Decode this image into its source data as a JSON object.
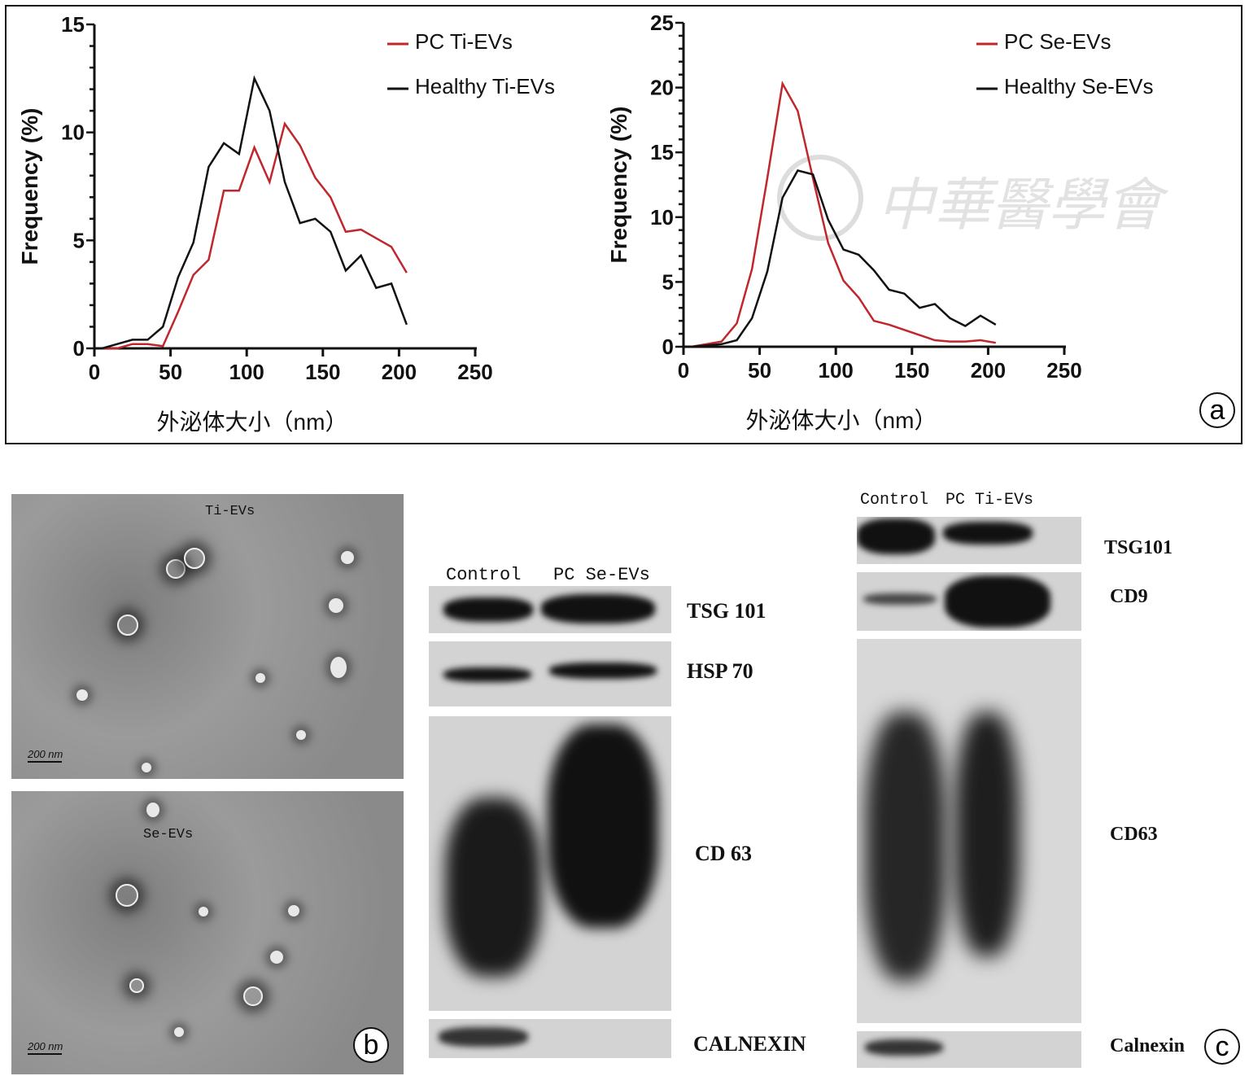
{
  "panel_labels": {
    "a": "a",
    "b": "b",
    "c": "c"
  },
  "chart_data": [
    {
      "type": "line",
      "xlabel": "外泌体大小（nm）",
      "ylabel": "Frequency (%)",
      "xlim": [
        0,
        250
      ],
      "ylim": [
        0,
        15
      ],
      "xticks": [
        "0",
        "50",
        "100",
        "150",
        "200",
        "250"
      ],
      "yticks": [
        "0",
        "5",
        "10",
        "15"
      ],
      "legend_placement": "top-right",
      "grid": false,
      "x": [
        5,
        15,
        25,
        35,
        45,
        55,
        65,
        75,
        85,
        95,
        105,
        115,
        125,
        135,
        145,
        155,
        165,
        175,
        185,
        195,
        205
      ],
      "series": [
        {
          "name": "PC Ti-EVs",
          "color": "#c0272d",
          "values": [
            0,
            0,
            0.2,
            0.2,
            0.1,
            1.7,
            3.4,
            4.1,
            7.3,
            7.3,
            9.3,
            7.7,
            10.4,
            9.4,
            7.9,
            7.0,
            5.4,
            5.5,
            5.1,
            4.7,
            3.5
          ]
        },
        {
          "name": "Healthy Ti-EVs",
          "color": "#111111",
          "values": [
            0,
            0.2,
            0.4,
            0.4,
            1.0,
            3.3,
            4.9,
            8.4,
            9.5,
            9.0,
            12.5,
            11.0,
            7.7,
            5.8,
            6.0,
            5.4,
            3.6,
            4.3,
            2.8,
            3.0,
            1.1
          ]
        }
      ]
    },
    {
      "type": "line",
      "xlabel": "外泌体大小（nm）",
      "ylabel": "Frequency (%)",
      "xlim": [
        0,
        250
      ],
      "ylim": [
        0,
        25
      ],
      "xticks": [
        "0",
        "50",
        "100",
        "150",
        "200",
        "250"
      ],
      "yticks": [
        "0",
        "5",
        "10",
        "15",
        "20",
        "25"
      ],
      "legend_placement": "top-right",
      "grid": false,
      "x": [
        5,
        15,
        25,
        35,
        45,
        55,
        65,
        75,
        85,
        95,
        105,
        115,
        125,
        135,
        145,
        155,
        165,
        175,
        185,
        195,
        205
      ],
      "series": [
        {
          "name": "PC Se-EVs",
          "color": "#c0272d",
          "values": [
            0,
            0.2,
            0.4,
            1.8,
            6,
            13,
            20.3,
            18.2,
            13,
            8,
            5.1,
            3.8,
            2.0,
            1.7,
            1.3,
            0.9,
            0.5,
            0.4,
            0.4,
            0.5,
            0.3
          ]
        },
        {
          "name": "Healthy Se-EVs",
          "color": "#111111",
          "values": [
            0,
            0.1,
            0.2,
            0.5,
            2.2,
            5.8,
            11.5,
            13.6,
            13.3,
            9.8,
            7.5,
            7.1,
            5.9,
            4.4,
            4.1,
            3.0,
            3.3,
            2.2,
            1.6,
            2.4,
            1.7
          ]
        }
      ]
    }
  ],
  "watermark": "中華醫學會",
  "micrographs": [
    {
      "label": "Ti-EVs",
      "scale": "200 nm"
    },
    {
      "label": "Se-EVs",
      "scale": "200 nm"
    }
  ],
  "blot_se": {
    "lanes": [
      "Control",
      "PC Se-EVs"
    ],
    "markers": [
      "TSG 101",
      "HSP 70",
      "CD 63",
      "CALNEXIN"
    ]
  },
  "blot_ti": {
    "lanes": [
      "Control",
      "PC Ti-EVs"
    ],
    "markers": [
      "TSG101",
      "CD9",
      "CD63",
      "Calnexin"
    ]
  }
}
